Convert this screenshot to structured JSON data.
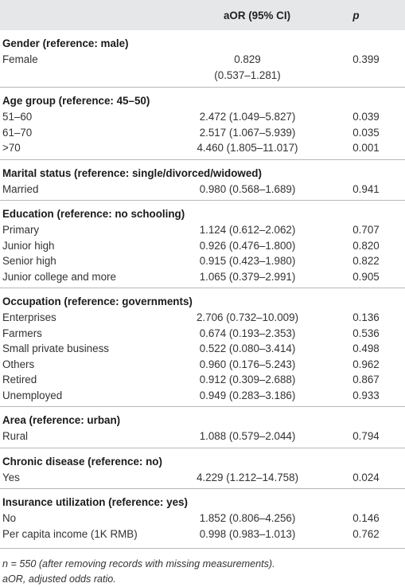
{
  "header": {
    "aor_label": "aOR (95% CI)",
    "p_label": "p"
  },
  "sections": [
    {
      "title": "Gender (reference: male)",
      "rows": [
        {
          "label": "Female",
          "aor_line1": "0.829",
          "aor_line2": "(0.537–1.281)",
          "p": "0.399"
        }
      ]
    },
    {
      "title": "Age group (reference: 45–50)",
      "rows": [
        {
          "label": "51–60",
          "aor": "2.472 (1.049–5.827)",
          "p": "0.039"
        },
        {
          "label": "61–70",
          "aor": "2.517 (1.067–5.939)",
          "p": "0.035"
        },
        {
          "label": ">70",
          "aor": "4.460 (1.805–11.017)",
          "p": "0.001"
        }
      ]
    },
    {
      "title": "Marital status (reference: single/divorced/widowed)",
      "rows": [
        {
          "label": "Married",
          "aor": "0.980 (0.568–1.689)",
          "p": "0.941"
        }
      ]
    },
    {
      "title": "Education (reference: no schooling)",
      "rows": [
        {
          "label": "Primary",
          "aor": "1.124 (0.612–2.062)",
          "p": "0.707"
        },
        {
          "label": "Junior high",
          "aor": "0.926 (0.476–1.800)",
          "p": "0.820"
        },
        {
          "label": "Senior high",
          "aor": "0.915 (0.423–1.980)",
          "p": "0.822"
        },
        {
          "label": "Junior college and more",
          "aor": "1.065 (0.379–2.991)",
          "p": "0.905"
        }
      ]
    },
    {
      "title": "Occupation (reference: governments)",
      "rows": [
        {
          "label": "Enterprises",
          "aor": "2.706 (0.732–10.009)",
          "p": "0.136"
        },
        {
          "label": "Farmers",
          "aor": "0.674 (0.193–2.353)",
          "p": "0.536"
        },
        {
          "label": "Small private business",
          "aor": "0.522 (0.080–3.414)",
          "p": "0.498"
        },
        {
          "label": "Others",
          "aor": "0.960 (0.176–5.243)",
          "p": "0.962"
        },
        {
          "label": "Retired",
          "aor": "0.912 (0.309–2.688)",
          "p": "0.867"
        },
        {
          "label": "Unemployed",
          "aor": "0.949 (0.283–3.186)",
          "p": "0.933"
        }
      ]
    },
    {
      "title": "Area (reference: urban)",
      "rows": [
        {
          "label": "Rural",
          "aor": "1.088 (0.579–2.044)",
          "p": "0.794"
        }
      ]
    },
    {
      "title": "Chronic disease (reference: no)",
      "rows": [
        {
          "label": "Yes",
          "aor": "4.229 (1.212–14.758)",
          "p": "0.024"
        }
      ]
    },
    {
      "title": "Insurance utilization (reference: yes)",
      "rows": [
        {
          "label": "No",
          "aor": "1.852 (0.806–4.256)",
          "p": "0.146"
        },
        {
          "label": "Per capita income (1K RMB)",
          "aor": "0.998 (0.983–1.013)",
          "p": "0.762"
        }
      ]
    }
  ],
  "footnotes": {
    "line1": "n = 550 (after removing records with missing measurements).",
    "line2": "aOR, adjusted odds ratio."
  }
}
